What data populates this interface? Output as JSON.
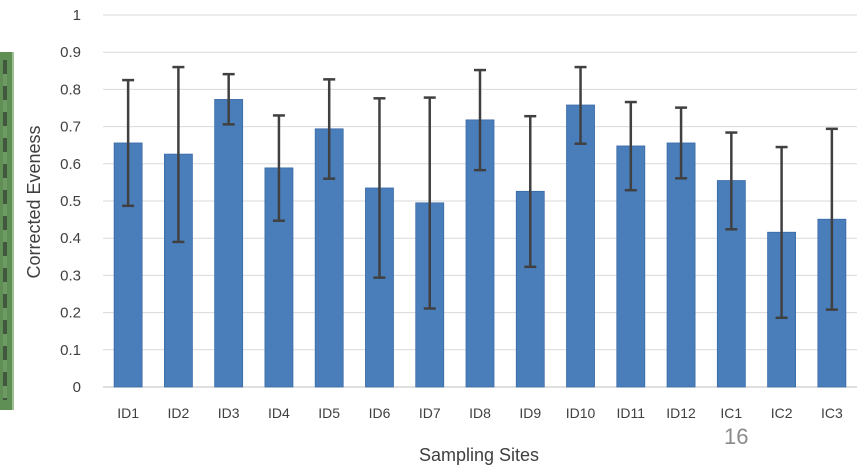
{
  "chart_data": {
    "type": "bar",
    "title": "",
    "xlabel": "Sampling Sites",
    "ylabel": "Corrected Eveness",
    "ylim": [
      0,
      1
    ],
    "yticks": [
      "0",
      "0.1",
      "0.2",
      "0.3",
      "0.4",
      "0.5",
      "0.6",
      "0.7",
      "0.8",
      "0.9",
      "1"
    ],
    "grid": true,
    "legend": "none",
    "categories": [
      "ID1",
      "ID2",
      "ID3",
      "ID4",
      "ID5",
      "ID6",
      "ID7",
      "ID8",
      "ID9",
      "ID10",
      "ID11",
      "ID12",
      "IC1",
      "IC2",
      "IC3"
    ],
    "values": [
      0.656,
      0.626,
      0.773,
      0.589,
      0.694,
      0.535,
      0.495,
      0.718,
      0.526,
      0.758,
      0.648,
      0.656,
      0.555,
      0.416,
      0.451
    ],
    "error_low": [
      0.487,
      0.39,
      0.706,
      0.447,
      0.56,
      0.294,
      0.211,
      0.583,
      0.323,
      0.654,
      0.529,
      0.561,
      0.424,
      0.186,
      0.208
    ],
    "error_high": [
      0.825,
      0.86,
      0.841,
      0.73,
      0.827,
      0.776,
      0.778,
      0.852,
      0.728,
      0.86,
      0.766,
      0.751,
      0.684,
      0.645,
      0.694
    ],
    "bar_color": "#4a7ebb",
    "error_color": "#404040"
  },
  "slide": {
    "number": "16"
  }
}
